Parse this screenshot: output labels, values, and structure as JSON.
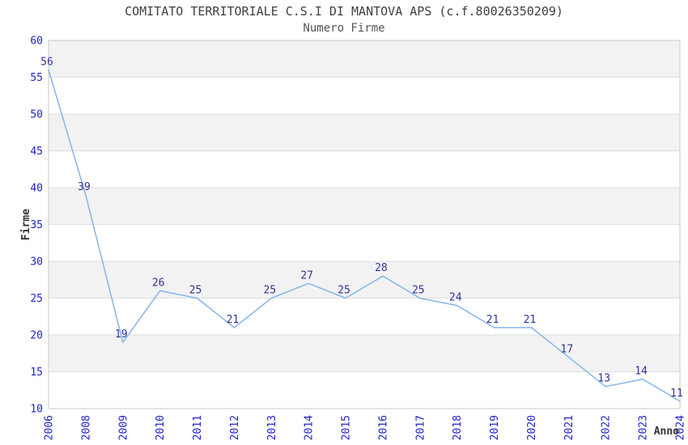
{
  "chart_data": {
    "type": "line",
    "title": "COMITATO TERRITORIALE C.S.I DI MANTOVA APS (c.f.80026350209)",
    "subtitle": "Numero Firme",
    "xlabel": "Anno",
    "ylabel": "Firme",
    "categories": [
      "2006",
      "2008",
      "2009",
      "2010",
      "2011",
      "2012",
      "2013",
      "2014",
      "2015",
      "2016",
      "2017",
      "2018",
      "2019",
      "2020",
      "2021",
      "2022",
      "2023",
      "2024"
    ],
    "values": [
      56,
      39,
      19,
      26,
      25,
      21,
      25,
      27,
      25,
      28,
      25,
      24,
      21,
      21,
      17,
      13,
      14,
      11
    ],
    "ylim": [
      10,
      60
    ],
    "ytick_step": 5,
    "yticks": [
      10,
      15,
      20,
      25,
      30,
      35,
      40,
      45,
      50,
      55,
      60
    ],
    "grid": true,
    "legend": "none",
    "band_fill_ranges": [
      [
        15,
        20
      ],
      [
        25,
        30
      ],
      [
        35,
        40
      ],
      [
        45,
        50
      ],
      [
        55,
        60
      ]
    ],
    "colors": {
      "line": "#85b5ea",
      "tick_label": "#2222cc",
      "data_label": "#333399",
      "band": "#f2f2f2",
      "gridline": "#dfdfdf",
      "border": "#c8c8c8",
      "title": "#3f3f3f",
      "subtitle": "#545454",
      "axis_title": "#333333",
      "background": "#ffffff"
    }
  }
}
